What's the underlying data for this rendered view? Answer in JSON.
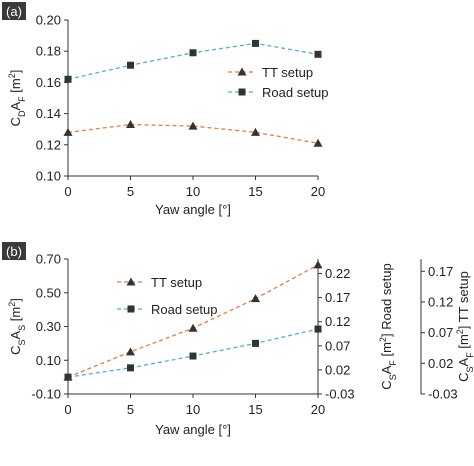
{
  "colors": {
    "tt": "#e87b3e",
    "road": "#45b4d6",
    "marker": "#333333",
    "axis": "#333333",
    "panel_tag_bg": "#3a3a3a"
  },
  "chart_data": [
    {
      "panel": "(a)",
      "type": "line",
      "x": [
        0,
        5,
        10,
        15,
        20
      ],
      "xticks": [
        "0",
        "5",
        "10",
        "15",
        "20"
      ],
      "xlabel": "Yaw angle [°]",
      "ylabel_parts": [
        "C",
        "D",
        "A",
        "F",
        " [m",
        "2",
        "]"
      ],
      "ylim": [
        0.1,
        0.2
      ],
      "yticks": [
        "0.10",
        "0.12",
        "0.14",
        "0.16",
        "0.18",
        "0.20"
      ],
      "ytick_values": [
        0.1,
        0.12,
        0.14,
        0.16,
        0.18,
        0.2
      ],
      "grid": false,
      "legend_position": "right-middle",
      "series": [
        {
          "name": "TT setup",
          "marker": "triangle",
          "color_key": "tt",
          "values": [
            0.128,
            0.133,
            0.132,
            0.128,
            0.121
          ]
        },
        {
          "name": "Road setup",
          "marker": "square",
          "color_key": "road",
          "values": [
            0.162,
            0.171,
            0.179,
            0.185,
            0.178
          ]
        }
      ]
    },
    {
      "panel": "(b)",
      "type": "line",
      "x": [
        0,
        5,
        10,
        15,
        20
      ],
      "xticks": [
        "0",
        "5",
        "10",
        "15",
        "20"
      ],
      "xlabel": "Yaw angle [°]",
      "ylabel_parts": [
        "C",
        "S",
        "A",
        "S",
        " [m",
        "2",
        "]"
      ],
      "ylim": [
        -0.1,
        0.7
      ],
      "yticks": [
        "-0.10",
        "0.10",
        "0.30",
        "0.50",
        "0.70"
      ],
      "ytick_values": [
        -0.1,
        0.1,
        0.3,
        0.5,
        0.7
      ],
      "secondary_axes": [
        {
          "label_parts": [
            "C",
            "S",
            "A",
            "F",
            " [m",
            "2",
            "] Road setup"
          ],
          "ylim": [
            -0.03,
            0.25
          ],
          "ticks": [
            "-0.03",
            "0.02",
            "0.07",
            "0.12",
            "0.17",
            "0.22"
          ],
          "tick_values": [
            -0.03,
            0.02,
            0.07,
            0.12,
            0.17,
            0.22
          ]
        },
        {
          "label_parts": [
            "C",
            "S",
            "A",
            "F",
            " [m",
            "2",
            "] TT setup"
          ],
          "ylim": [
            -0.03,
            0.19
          ],
          "ticks": [
            "-0.03",
            "0.02",
            "0.07",
            "0.12",
            "0.17"
          ],
          "tick_values": [
            -0.03,
            0.02,
            0.07,
            0.12,
            0.17
          ]
        }
      ],
      "grid": false,
      "legend_position": "upper-left",
      "series": [
        {
          "name": "TT setup",
          "marker": "triangle",
          "color_key": "tt",
          "values": [
            0.0,
            0.15,
            0.29,
            0.465,
            0.665
          ]
        },
        {
          "name": "Road setup",
          "marker": "square",
          "color_key": "road",
          "values": [
            0.0,
            0.055,
            0.125,
            0.2,
            0.285
          ]
        }
      ]
    }
  ]
}
